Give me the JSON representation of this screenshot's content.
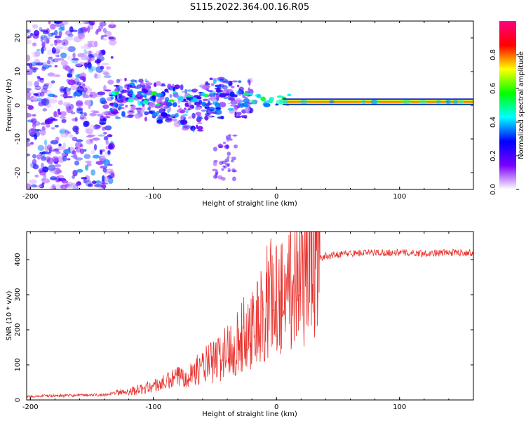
{
  "page": {
    "title": "S115.2022.364.00.16.R05"
  },
  "chart_data": [
    {
      "type": "heatmap",
      "title": "S115.2022.364.00.16.R05",
      "xlabel": "Height of straight line (km)",
      "ylabel": "Frequency (Hz)",
      "xlim": [
        -203,
        160
      ],
      "ylim": [
        -25,
        25
      ],
      "xticks": [
        -200,
        -100,
        0,
        100
      ],
      "yticks": [
        -20,
        -10,
        0,
        10,
        20
      ],
      "colorbar": {
        "label": "Normalized spectral amplitude",
        "ticks": [
          "0.0",
          "0.2",
          "0.4",
          "0.6",
          "0.8"
        ],
        "range": [
          0,
          1
        ],
        "stops": [
          "#ffffff",
          "#7a00ff",
          "#0000ff",
          "#00ffff",
          "#00ff00",
          "#ffff00",
          "#ff0000",
          "#ff0080"
        ]
      },
      "features": [
        {
          "x_range": [
            -203,
            -135
          ],
          "freq_range": [
            -25,
            25
          ],
          "level": 0.1,
          "note": "scattered"
        },
        {
          "x_range": [
            -135,
            -20
          ],
          "freq_center": 2,
          "freq_spread": 6,
          "level": 0.3
        },
        {
          "x_range": [
            -20,
            160
          ],
          "freq_center": 1,
          "freq_spread": 1,
          "level": 0.95
        }
      ]
    },
    {
      "type": "line",
      "xlabel": "Height of straight line (km)",
      "ylabel": "SNR (10 * v/v)",
      "xlim": [
        -203,
        160
      ],
      "ylim": [
        0,
        480
      ],
      "xticks": [
        -200,
        -100,
        0,
        100
      ],
      "yticks": [
        0,
        100,
        200,
        300,
        400
      ],
      "series": [
        {
          "color": "#e8322d",
          "x": [
            -203,
            -180,
            -160,
            -140,
            -130,
            -120,
            -110,
            -100,
            -90,
            -80,
            -70,
            -60,
            -50,
            -40,
            -30,
            -20,
            -15,
            -10,
            -5,
            0,
            5,
            10,
            15,
            20,
            25,
            30,
            35,
            40,
            50,
            60,
            80,
            100,
            120,
            140,
            160
          ],
          "y": [
            10,
            12,
            13,
            15,
            20,
            25,
            30,
            40,
            50,
            65,
            75,
            95,
            110,
            140,
            170,
            210,
            230,
            210,
            300,
            280,
            320,
            330,
            340,
            360,
            380,
            400,
            405,
            410,
            415,
            418,
            420,
            420,
            418,
            420,
            420
          ]
        }
      ]
    }
  ]
}
